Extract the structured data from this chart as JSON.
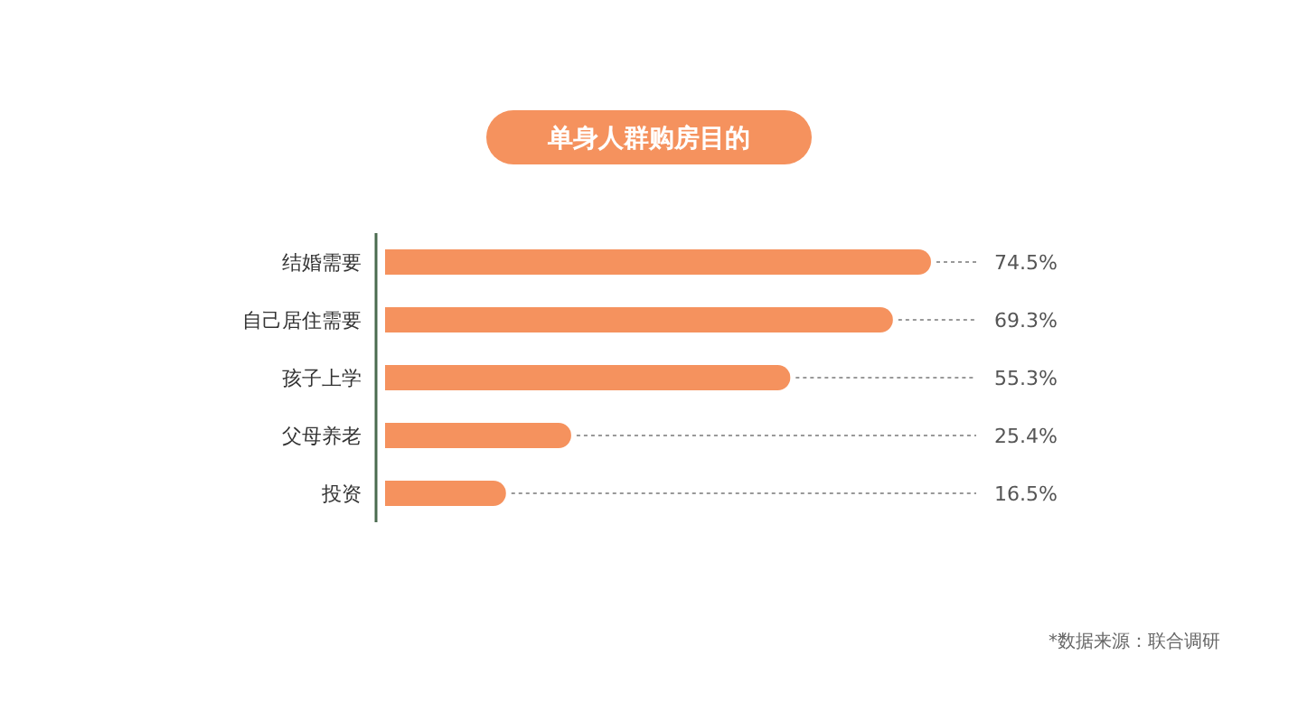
{
  "chart_data": {
    "type": "bar",
    "orientation": "horizontal",
    "title": "单身人群购房目的",
    "categories": [
      "结婚需要",
      "自己居住需要",
      "孩子上学",
      "父母养老",
      "投资"
    ],
    "values": [
      74.5,
      69.3,
      55.3,
      25.4,
      16.5
    ],
    "value_labels": [
      "74.5%",
      "69.3%",
      "55.3%",
      "25.4%",
      "16.5%"
    ],
    "color": "#f5925e",
    "annotations": [
      "*数据来源：联合调研"
    ]
  }
}
